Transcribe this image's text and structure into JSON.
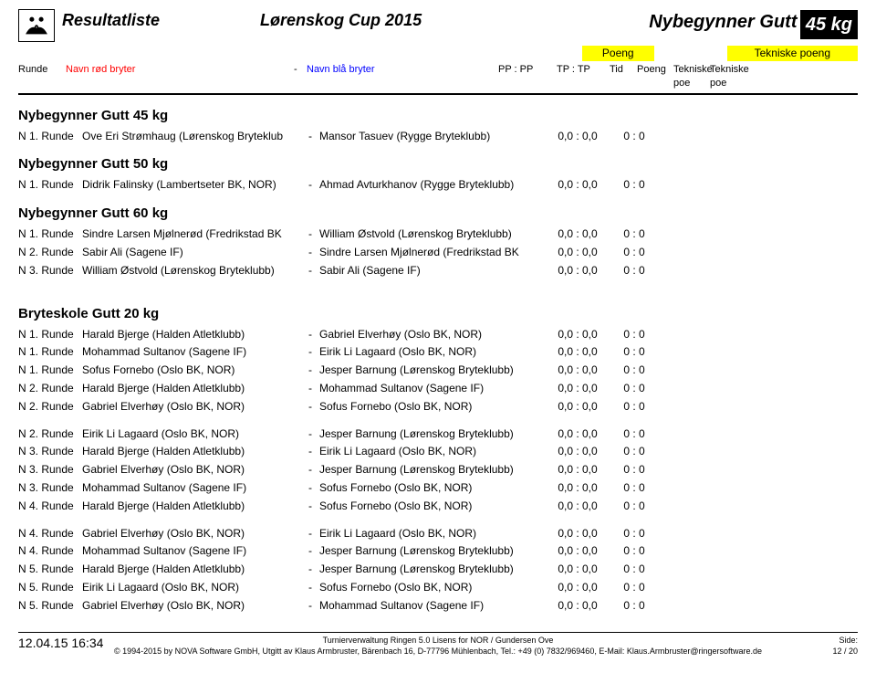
{
  "header": {
    "resultat": "Resultatliste",
    "event": "Lørenskog Cup 2015",
    "category": "Nybegynner Gutt",
    "weight_badge": "45 kg",
    "poeng_label": "Poeng",
    "tekniske_label": "Tekniske poeng",
    "col_runde": "Runde",
    "col_red": "Navn rød bryter",
    "col_blue": "Navn blå bryter",
    "col_pp": "PP : PP",
    "col_tp": "TP : TP",
    "col_tid": "Tid",
    "col_poeng": "Poeng",
    "col_teknisk1": "Tekniske poe",
    "col_teknisk2": "Tekniske poe"
  },
  "groups": [
    {
      "title": "Nybegynner Gutt 45 kg",
      "rows": [
        {
          "r": "N 1. Runde",
          "red": "Ove Eri Strømhaug (Lørenskog Bryteklub",
          "blue": "Mansor Tasuev (Rygge Bryteklubb)",
          "pp": "0,0",
          "ppv": "0,0",
          "tp": "0",
          "tpv": "0"
        }
      ]
    },
    {
      "title": "Nybegynner Gutt 50 kg",
      "rows": [
        {
          "r": "N 1. Runde",
          "red": "Didrik Falinsky (Lambertseter BK, NOR)",
          "blue": "Ahmad Avturkhanov (Rygge Bryteklubb)",
          "pp": "0,0",
          "ppv": "0,0",
          "tp": "0",
          "tpv": "0"
        }
      ]
    },
    {
      "title": "Nybegynner Gutt 60 kg",
      "rows": [
        {
          "r": "N 1. Runde",
          "red": "Sindre Larsen Mjølnerød (Fredrikstad BK",
          "blue": "William Østvold (Lørenskog Bryteklubb)",
          "pp": "0,0",
          "ppv": "0,0",
          "tp": "0",
          "tpv": "0"
        },
        {
          "r": "N 2. Runde",
          "red": "Sabir Ali (Sagene IF)",
          "blue": "Sindre Larsen Mjølnerød (Fredrikstad BK",
          "pp": "0,0",
          "ppv": "0,0",
          "tp": "0",
          "tpv": "0"
        },
        {
          "r": "N 3. Runde",
          "red": "William Østvold (Lørenskog Bryteklubb)",
          "blue": "Sabir Ali (Sagene IF)",
          "pp": "0,0",
          "ppv": "0,0",
          "tp": "0",
          "tpv": "0"
        }
      ]
    },
    {
      "title": "Bryteskole Gutt 20 kg",
      "spaced": true,
      "rows": [
        {
          "r": "N 1. Runde",
          "red": "Harald Bjerge (Halden Atletklubb)",
          "blue": "Gabriel Elverhøy (Oslo BK, NOR)",
          "pp": "0,0",
          "ppv": "0,0",
          "tp": "0",
          "tpv": "0"
        },
        {
          "r": "N 1. Runde",
          "red": "Mohammad Sultanov (Sagene IF)",
          "blue": "Eirik Li Lagaard (Oslo BK, NOR)",
          "pp": "0,0",
          "ppv": "0,0",
          "tp": "0",
          "tpv": "0"
        },
        {
          "r": "N 1. Runde",
          "red": "Sofus Fornebo (Oslo BK, NOR)",
          "blue": "Jesper Barnung (Lørenskog Bryteklubb)",
          "pp": "0,0",
          "ppv": "0,0",
          "tp": "0",
          "tpv": "0"
        },
        {
          "r": "N 2. Runde",
          "red": "Harald Bjerge (Halden Atletklubb)",
          "blue": "Mohammad Sultanov (Sagene IF)",
          "pp": "0,0",
          "ppv": "0,0",
          "tp": "0",
          "tpv": "0"
        },
        {
          "r": "N 2. Runde",
          "red": "Gabriel Elverhøy (Oslo BK, NOR)",
          "blue": "Sofus Fornebo (Oslo BK, NOR)",
          "pp": "0,0",
          "ppv": "0,0",
          "tp": "0",
          "tpv": "0"
        },
        {
          "gap": true
        },
        {
          "r": "N 2. Runde",
          "red": "Eirik Li Lagaard (Oslo BK, NOR)",
          "blue": "Jesper Barnung (Lørenskog Bryteklubb)",
          "pp": "0,0",
          "ppv": "0,0",
          "tp": "0",
          "tpv": "0"
        },
        {
          "r": "N 3. Runde",
          "red": "Harald Bjerge (Halden Atletklubb)",
          "blue": "Eirik Li Lagaard (Oslo BK, NOR)",
          "pp": "0,0",
          "ppv": "0,0",
          "tp": "0",
          "tpv": "0"
        },
        {
          "r": "N 3. Runde",
          "red": "Gabriel Elverhøy (Oslo BK, NOR)",
          "blue": "Jesper Barnung (Lørenskog Bryteklubb)",
          "pp": "0,0",
          "ppv": "0,0",
          "tp": "0",
          "tpv": "0"
        },
        {
          "r": "N 3. Runde",
          "red": "Mohammad Sultanov (Sagene IF)",
          "blue": "Sofus Fornebo (Oslo BK, NOR)",
          "pp": "0,0",
          "ppv": "0,0",
          "tp": "0",
          "tpv": "0"
        },
        {
          "r": "N 4. Runde",
          "red": "Harald Bjerge (Halden Atletklubb)",
          "blue": "Sofus Fornebo (Oslo BK, NOR)",
          "pp": "0,0",
          "ppv": "0,0",
          "tp": "0",
          "tpv": "0"
        },
        {
          "gap": true
        },
        {
          "r": "N 4. Runde",
          "red": "Gabriel Elverhøy (Oslo BK, NOR)",
          "blue": "Eirik Li Lagaard (Oslo BK, NOR)",
          "pp": "0,0",
          "ppv": "0,0",
          "tp": "0",
          "tpv": "0"
        },
        {
          "r": "N 4. Runde",
          "red": "Mohammad Sultanov (Sagene IF)",
          "blue": "Jesper Barnung (Lørenskog Bryteklubb)",
          "pp": "0,0",
          "ppv": "0,0",
          "tp": "0",
          "tpv": "0"
        },
        {
          "r": "N 5. Runde",
          "red": "Harald Bjerge (Halden Atletklubb)",
          "blue": "Jesper Barnung (Lørenskog Bryteklubb)",
          "pp": "0,0",
          "ppv": "0,0",
          "tp": "0",
          "tpv": "0"
        },
        {
          "r": "N 5. Runde",
          "red": "Eirik Li Lagaard (Oslo BK, NOR)",
          "blue": "Sofus Fornebo (Oslo BK, NOR)",
          "pp": "0,0",
          "ppv": "0,0",
          "tp": "0",
          "tpv": "0"
        },
        {
          "r": "N 5. Runde",
          "red": "Gabriel Elverhøy (Oslo BK, NOR)",
          "blue": "Mohammad Sultanov (Sagene IF)",
          "pp": "0,0",
          "ppv": "0,0",
          "tp": "0",
          "tpv": "0"
        }
      ]
    }
  ],
  "footer": {
    "date": "12.04.15 16:34",
    "line1": "Turnierverwaltung Ringen 5.0 Lisens for NOR / Gundersen Ove",
    "line2": "© 1994-2015 by NOVA Software GmbH, Utgitt av Klaus Armbruster, Bärenbach 16, D-77796 Mühlenbach, Tel.: +49 (0) 7832/969460, E-Mail: Klaus.Armbruster@ringersoftware.de",
    "side_label": "Side:",
    "page": "12 / 20"
  }
}
